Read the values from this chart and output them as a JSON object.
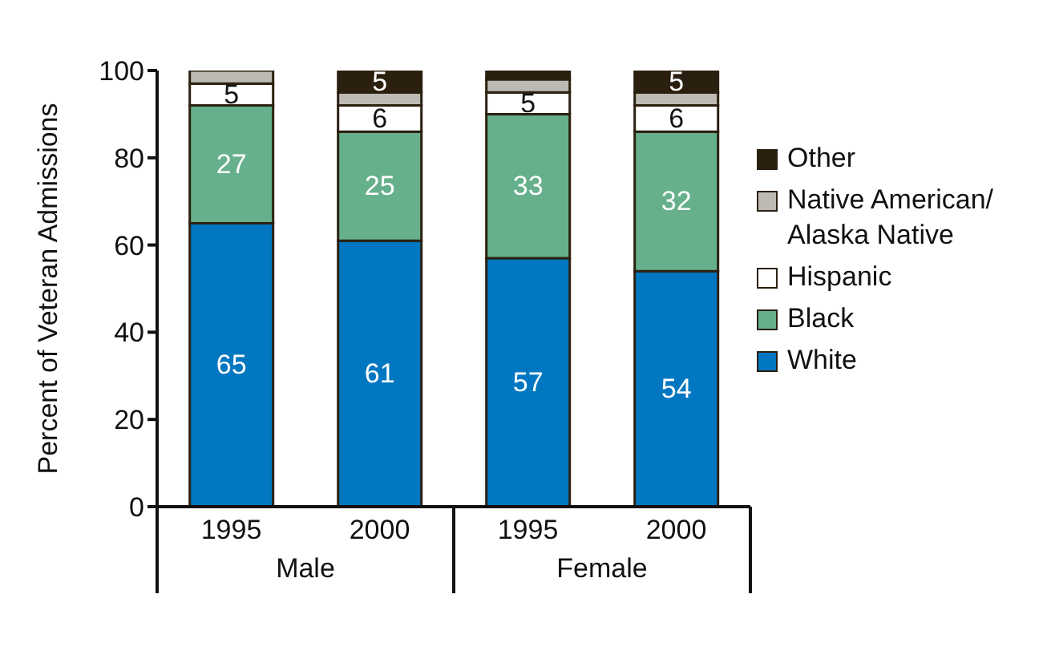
{
  "chart_data": {
    "type": "bar",
    "stacked": true,
    "ylabel": "Percent of Veteran Admissions",
    "categories": [
      "1995",
      "2000",
      "1995",
      "2000"
    ],
    "annotations": [
      "Male",
      "Female"
    ],
    "ylim": [
      0,
      100
    ],
    "yticks": [
      0,
      20,
      40,
      60,
      80,
      100
    ],
    "grid": false,
    "legend": "right",
    "series": [
      {
        "name": "White",
        "color": "#0077c0",
        "values": [
          65,
          61,
          57,
          54
        ],
        "value_labels": [
          "65",
          "61",
          "57",
          "54"
        ]
      },
      {
        "name": "Black",
        "color": "#66b08c",
        "values": [
          27,
          25,
          33,
          32
        ],
        "value_labels": [
          "27",
          "25",
          "33",
          "32"
        ]
      },
      {
        "name": "Hispanic",
        "color": "#ffffff",
        "values": [
          5,
          6,
          5,
          6
        ],
        "value_labels": [
          "5",
          "6",
          "5",
          "6"
        ]
      },
      {
        "name": "Native American/Alaska Native",
        "color": "#bdbab3",
        "values": [
          3,
          3,
          3,
          3
        ],
        "value_labels": [
          null,
          null,
          null,
          null
        ]
      },
      {
        "name": "Other",
        "color": "#2b2010",
        "values": [
          0,
          5,
          2,
          5
        ],
        "value_labels": [
          null,
          "5",
          null,
          "5"
        ]
      }
    ]
  }
}
